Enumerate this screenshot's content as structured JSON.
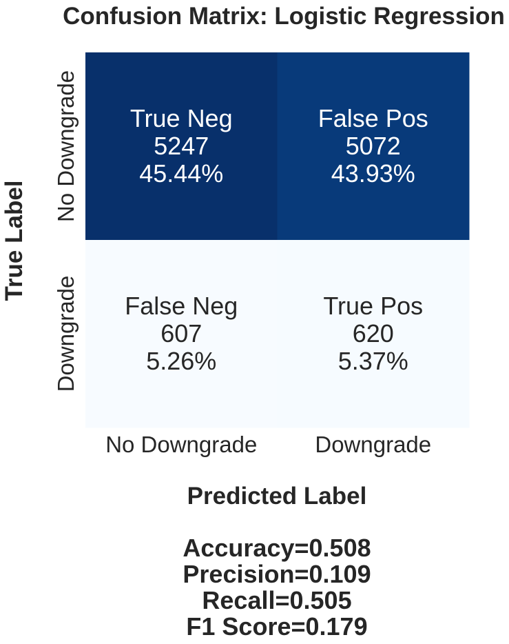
{
  "chart_data": {
    "type": "heatmap",
    "title": "Confusion Matrix: Logistic Regression",
    "xlabel": "Predicted Label",
    "ylabel": "True Label",
    "x_categories": [
      "No Downgrade",
      "Downgrade"
    ],
    "y_categories": [
      "No Downgrade",
      "Downgrade"
    ],
    "cells": [
      [
        {
          "name": "True Neg",
          "count": "5247",
          "percent": "45.44%",
          "value": 5247
        },
        {
          "name": "False Pos",
          "count": "5072",
          "percent": "43.93%",
          "value": 5072
        }
      ],
      [
        {
          "name": "False Neg",
          "count": "607",
          "percent": "5.26%",
          "value": 607
        },
        {
          "name": "True Pos",
          "count": "620",
          "percent": "5.37%",
          "value": 620
        }
      ]
    ],
    "colormap": "Blues",
    "colorbar": false,
    "metrics": [
      "Accuracy=0.508",
      "Precision=0.109",
      "Recall=0.505",
      "F1 Score=0.179"
    ]
  },
  "colors": {
    "text": "#262626",
    "cell_text_dark_bg": "#ffffff",
    "cell_text_light_bg": "#262626",
    "blues_low": "#f7fbff",
    "blues_high": "#08306b"
  }
}
